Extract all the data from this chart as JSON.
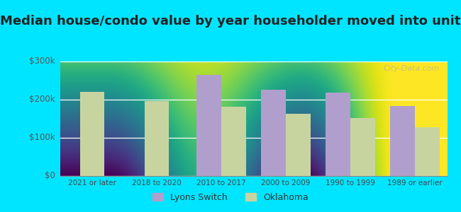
{
  "title": "Median house/condo value by year householder moved into unit",
  "categories": [
    "2021 or later",
    "2018 to 2020",
    "2010 to 2017",
    "2000 to 2009",
    "1990 to 1999",
    "1989 or earlier"
  ],
  "lyons_switch": [
    null,
    null,
    265000,
    225000,
    218000,
    183000
  ],
  "oklahoma": [
    220000,
    197000,
    182000,
    163000,
    152000,
    127000
  ],
  "lyons_color": "#b09fcc",
  "oklahoma_color": "#c8d4a0",
  "background_outer": "#00e5ff",
  "ylim": [
    0,
    300000
  ],
  "yticks": [
    0,
    100000,
    200000,
    300000
  ],
  "ytick_labels": [
    "$0",
    "$100k",
    "$200k",
    "$300k"
  ],
  "legend_lyons": "Lyons Switch",
  "legend_oklahoma": "Oklahoma",
  "title_fontsize": 13,
  "bar_width": 0.38,
  "watermark": "City-Data.com"
}
